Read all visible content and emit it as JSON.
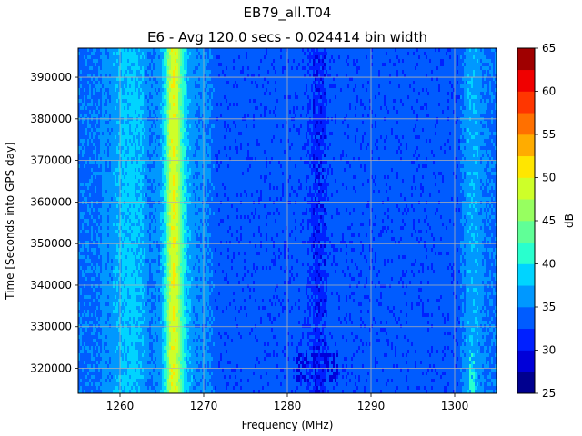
{
  "chart_data": {
    "type": "heatmap",
    "title": "EB79_all.T04",
    "subtitle": "E6 - Avg 120.0 secs - 0.024414 bin width",
    "xlabel": "Frequency (MHz)",
    "ylabel": "Time [Seconds into GPS day]",
    "xlim": [
      1255,
      1305
    ],
    "ylim": [
      314000,
      397000
    ],
    "x_ticks": [
      1260,
      1270,
      1280,
      1290,
      1300
    ],
    "y_ticks": [
      320000,
      330000,
      340000,
      350000,
      360000,
      370000,
      380000,
      390000
    ],
    "grid": true,
    "colorbar": {
      "label": "dB",
      "min": 25,
      "max": 65,
      "levels": [
        25,
        27.5,
        30,
        32.5,
        35,
        37.5,
        40,
        42.5,
        45,
        47.5,
        50,
        52.5,
        55,
        57.5,
        60,
        62.5,
        65
      ],
      "ticks": [
        25,
        30,
        35,
        40,
        45,
        50,
        55,
        60,
        65
      ],
      "colors": [
        "#00008f",
        "#0000d9",
        "#0020ff",
        "#005cff",
        "#0098ff",
        "#00d4ff",
        "#29ffce",
        "#60ff97",
        "#97ff60",
        "#ceff29",
        "#ffe600",
        "#ffac00",
        "#ff7000",
        "#ff3600",
        "#f00000",
        "#a00000"
      ]
    },
    "background_db": 33.5,
    "frequency_profile": [
      {
        "f": 1255.0,
        "db": 34.5
      },
      {
        "f": 1257.6,
        "db": 34.5
      },
      {
        "f": 1258.0,
        "db": 36.5
      },
      {
        "f": 1258.5,
        "db": 35.5
      },
      {
        "f": 1260.0,
        "db": 37.5
      },
      {
        "f": 1261.5,
        "db": 38.5
      },
      {
        "f": 1262.8,
        "db": 37.0
      },
      {
        "f": 1263.6,
        "db": 35.0
      },
      {
        "f": 1264.8,
        "db": 36.0
      },
      {
        "f": 1265.5,
        "db": 41.0
      },
      {
        "f": 1266.0,
        "db": 48.0
      },
      {
        "f": 1266.4,
        "db": 50.0
      },
      {
        "f": 1266.9,
        "db": 48.0
      },
      {
        "f": 1267.4,
        "db": 42.0
      },
      {
        "f": 1268.0,
        "db": 37.5
      },
      {
        "f": 1269.0,
        "db": 35.5
      },
      {
        "f": 1270.0,
        "db": 36.0
      },
      {
        "f": 1270.6,
        "db": 35.0
      },
      {
        "f": 1271.5,
        "db": 33.5
      },
      {
        "f": 1282.0,
        "db": 33.5
      },
      {
        "f": 1283.5,
        "db": 32.0
      },
      {
        "f": 1285.0,
        "db": 33.5
      },
      {
        "f": 1300.5,
        "db": 33.5
      },
      {
        "f": 1301.5,
        "db": 36.5
      },
      {
        "f": 1302.5,
        "db": 37.0
      },
      {
        "f": 1303.5,
        "db": 35.0
      },
      {
        "f": 1305.0,
        "db": 34.5
      }
    ],
    "features": [
      {
        "f_min": 1281.0,
        "f_max": 1286.0,
        "t_min": 317000,
        "t_max": 324000,
        "db": 29.0
      },
      {
        "f_min": 1283.0,
        "f_max": 1284.5,
        "t_min": 314000,
        "t_max": 397000,
        "db": 30.5
      },
      {
        "f_min": 1301.8,
        "f_max": 1302.4,
        "t_min": 314000,
        "t_max": 324000,
        "db": 41.0
      }
    ]
  }
}
